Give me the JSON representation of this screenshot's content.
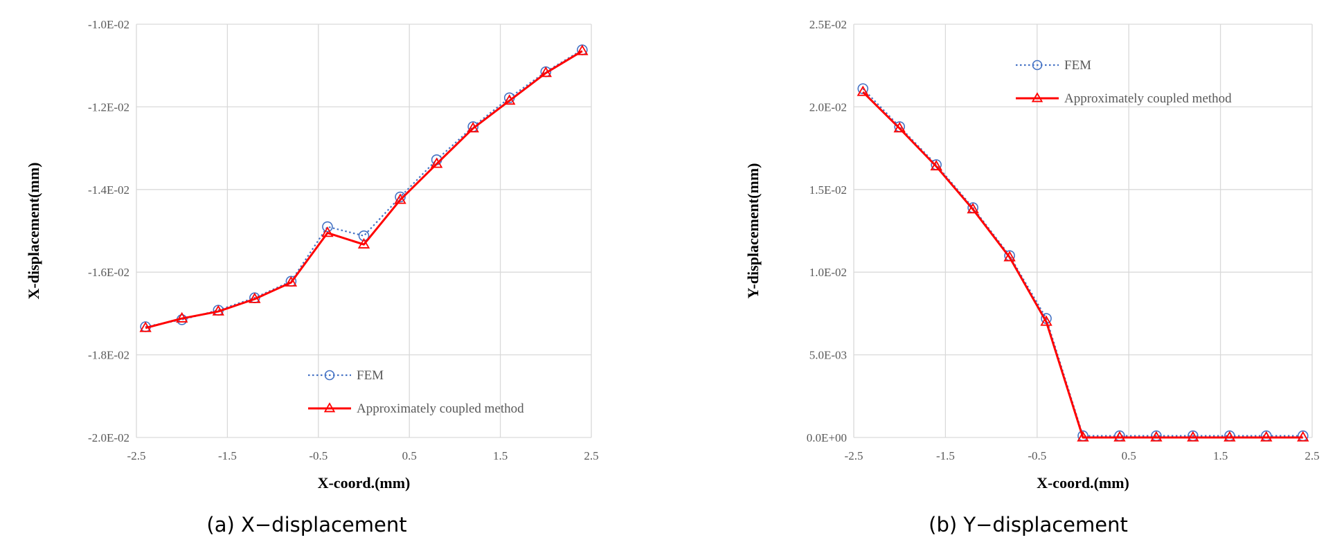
{
  "colors": {
    "fem": "#4472C4",
    "approx": "#FF0000",
    "grid": "#D9D9D9",
    "tick_text": "#595959"
  },
  "chart_data": [
    {
      "type": "line",
      "caption": "(a) X−displacement",
      "xlabel": "X-coord.(mm)",
      "ylabel": "X-displacement(mm)",
      "xlim": [
        -2.5,
        2.5
      ],
      "ylim": [
        -0.02,
        -0.01
      ],
      "xticks": [
        -2.5,
        -1.5,
        -0.5,
        0.5,
        1.5,
        2.5
      ],
      "xtick_labels": [
        "-2.5",
        "-1.5",
        "-0.5",
        "0.5",
        "1.5",
        "2.5"
      ],
      "yticks": [
        -0.02,
        -0.018,
        -0.016,
        -0.014,
        -0.012,
        -0.01
      ],
      "ytick_labels": [
        "-2.0E-02",
        "-1.8E-02",
        "-1.6E-02",
        "-1.4E-02",
        "-1.2E-02",
        "-1.0E-02"
      ],
      "grid": true,
      "legend_position": "bottom-center",
      "x": [
        -2.4,
        -2.0,
        -1.6,
        -1.2,
        -0.8,
        -0.4,
        0.0,
        0.4,
        0.8,
        1.2,
        1.6,
        2.0,
        2.4
      ],
      "series": [
        {
          "name": "FEM",
          "style": "dotted-circle",
          "values": [
            -0.01732,
            -0.01715,
            -0.01692,
            -0.01662,
            -0.01622,
            -0.0149,
            -0.01512,
            -0.01418,
            -0.01328,
            -0.01248,
            -0.01178,
            -0.01115,
            -0.01062
          ]
        },
        {
          "name": "Approximately coupled method",
          "style": "solid-triangle",
          "values": [
            -0.01735,
            -0.01712,
            -0.01695,
            -0.01665,
            -0.01625,
            -0.01505,
            -0.01533,
            -0.01425,
            -0.01338,
            -0.01252,
            -0.01185,
            -0.01118,
            -0.01065
          ]
        }
      ]
    },
    {
      "type": "line",
      "caption": "(b) Y−displacement",
      "xlabel": "X-coord.(mm)",
      "ylabel": "Y-displacement(mm)",
      "xlim": [
        -2.5,
        2.5
      ],
      "ylim": [
        0,
        0.025
      ],
      "xticks": [
        -2.5,
        -1.5,
        -0.5,
        0.5,
        1.5,
        2.5
      ],
      "xtick_labels": [
        "-2.5",
        "-1.5",
        "-0.5",
        "0.5",
        "1.5",
        "2.5"
      ],
      "yticks": [
        0,
        0.005,
        0.01,
        0.015,
        0.02,
        0.025
      ],
      "ytick_labels": [
        "0.0E+00",
        "5.0E-03",
        "1.0E-02",
        "1.5E-02",
        "2.0E-02",
        "2.5E-02"
      ],
      "grid": true,
      "legend_position": "top-center",
      "x": [
        -2.4,
        -2.0,
        -1.6,
        -1.2,
        -0.8,
        -0.4,
        0.0,
        0.4,
        0.8,
        1.2,
        1.6,
        2.0,
        2.4
      ],
      "series": [
        {
          "name": "FEM",
          "style": "dotted-circle",
          "values": [
            0.0211,
            0.0188,
            0.0165,
            0.0139,
            0.011,
            0.0072,
            0.0001,
            0.0001,
            0.0001,
            0.0001,
            0.0001,
            0.0001,
            0.0001
          ]
        },
        {
          "name": "Approximately coupled method",
          "style": "solid-triangle",
          "values": [
            0.0209,
            0.0187,
            0.0164,
            0.0138,
            0.0109,
            0.007,
            0.0,
            0.0,
            0.0,
            0.0,
            0.0,
            0.0,
            0.0
          ]
        }
      ]
    }
  ]
}
